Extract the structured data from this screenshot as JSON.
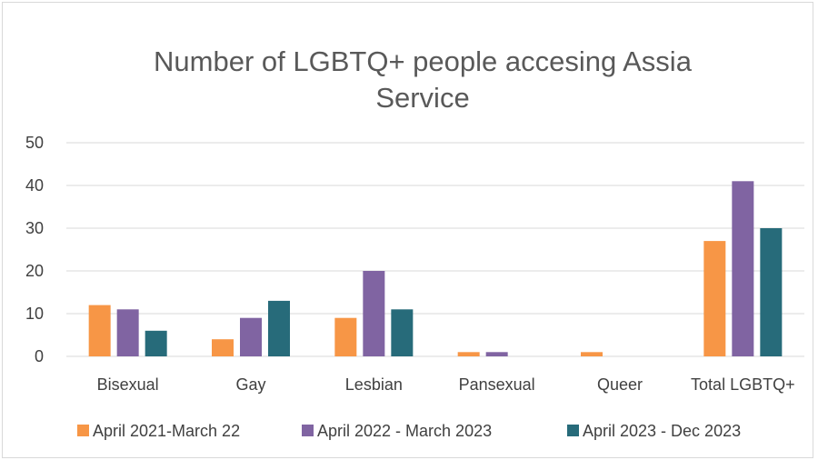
{
  "chart_data": {
    "type": "bar",
    "title_lines": [
      "Number of LGBTQ+ people accesing Assia",
      "Service"
    ],
    "categories": [
      "Bisexual",
      "Gay",
      "Lesbian",
      "Pansexual",
      "Queer",
      "Total LGBTQ+"
    ],
    "series": [
      {
        "name": "April 2021-March 22",
        "color": "#F79646",
        "values": [
          12,
          4,
          9,
          1,
          1,
          27
        ]
      },
      {
        "name": "April 2022 - March 2023",
        "color": "#8064A2",
        "values": [
          11,
          9,
          20,
          1,
          0,
          41
        ]
      },
      {
        "name": "April 2023 - Dec 2023",
        "color": "#276B7A",
        "values": [
          6,
          13,
          11,
          0,
          0,
          30
        ]
      }
    ],
    "ylim": [
      0,
      50
    ],
    "yticks": [
      0,
      10,
      20,
      30,
      40,
      50
    ],
    "grid": true,
    "legend_position": "bottom"
  }
}
